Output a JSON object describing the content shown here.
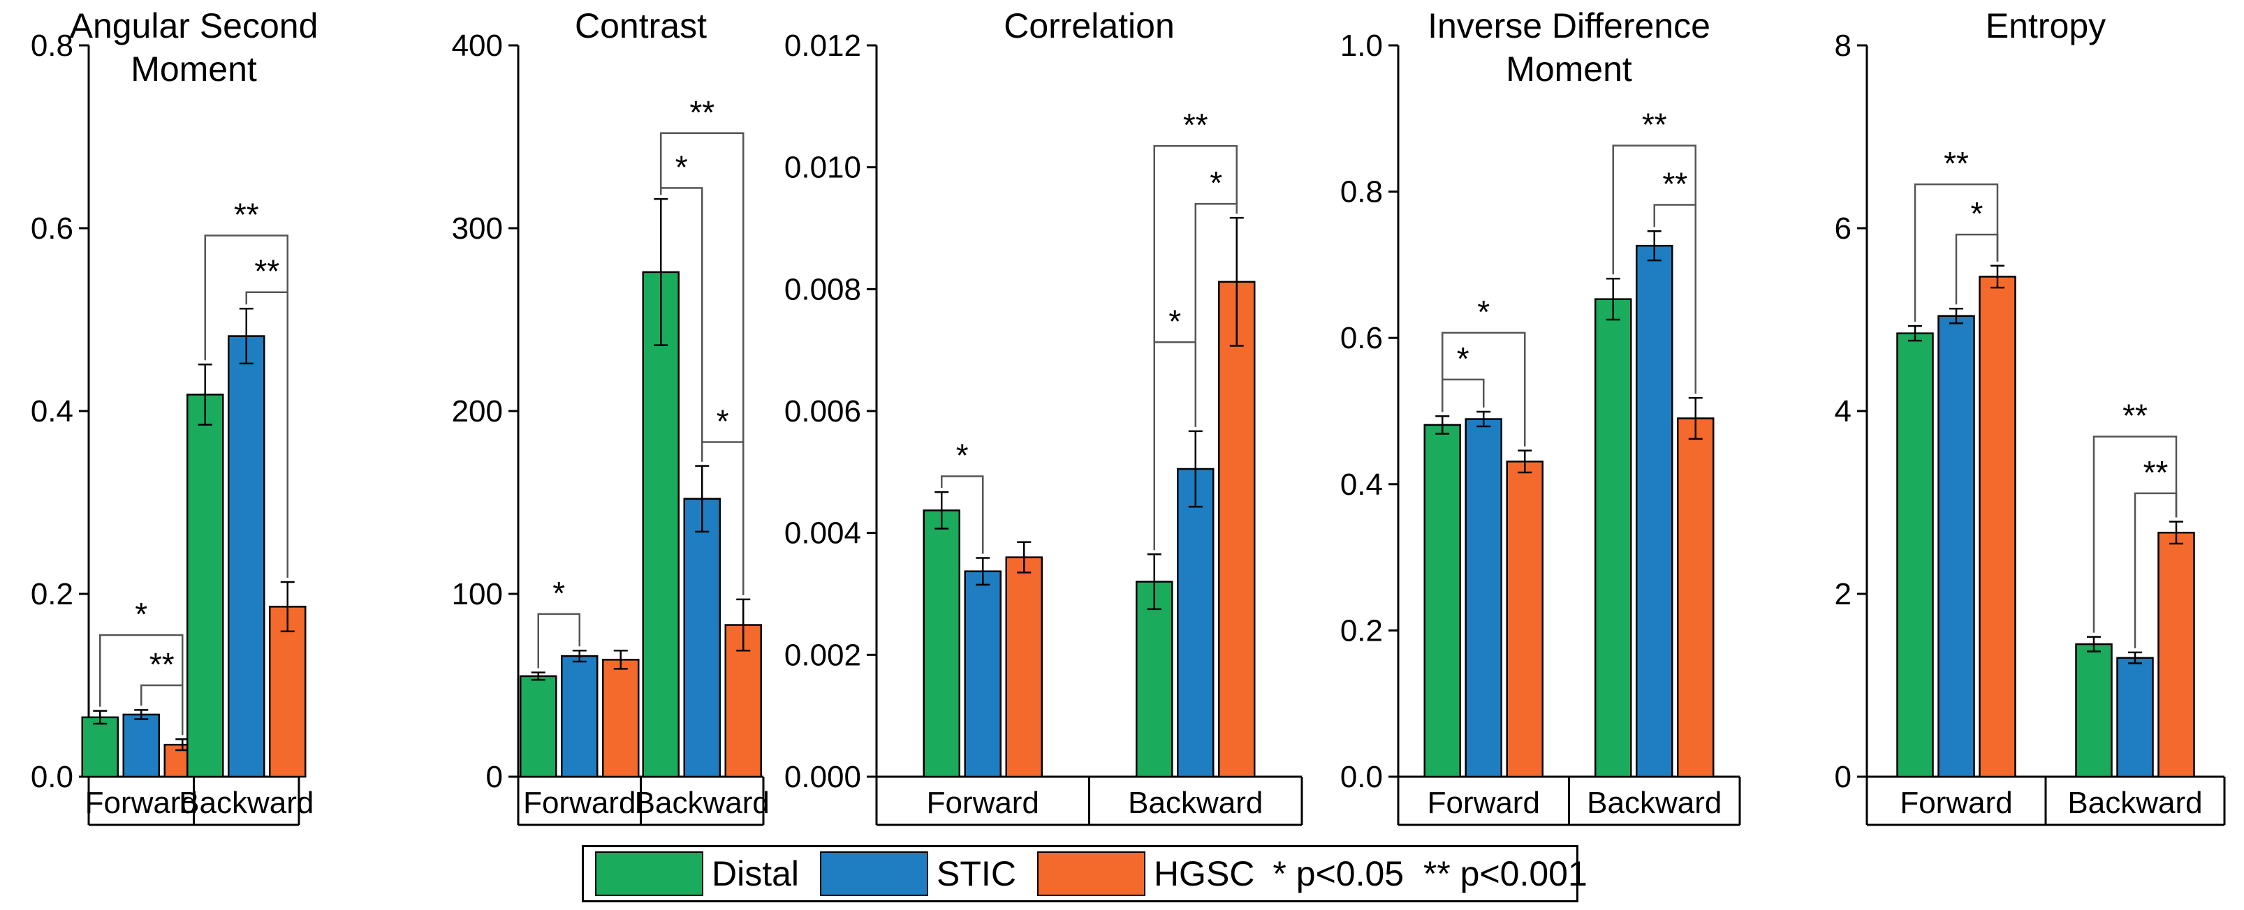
{
  "chart_data": [
    {
      "type": "bar",
      "title": "Angular Second Moment",
      "title_lines": [
        "Angular Second",
        "Moment"
      ],
      "categories": [
        "Forward",
        "Backward"
      ],
      "ylim": [
        0,
        0.8
      ],
      "yticks": [
        0.0,
        0.2,
        0.4,
        0.6,
        0.8
      ],
      "ytick_labels": [
        "0.0",
        "0.2",
        "0.4",
        "0.6",
        "0.8"
      ],
      "series": [
        {
          "name": "Distal",
          "values": [
            0.065,
            0.418
          ],
          "errors": [
            0.007,
            0.033
          ]
        },
        {
          "name": "STIC",
          "values": [
            0.068,
            0.482
          ],
          "errors": [
            0.005,
            0.03
          ]
        },
        {
          "name": "HGSC",
          "values": [
            0.035,
            0.186
          ],
          "errors": [
            0.006,
            0.027
          ]
        }
      ],
      "significance": [
        {
          "group": 0,
          "from": 0,
          "to": 2,
          "level": 0.155,
          "label": "*"
        },
        {
          "group": 0,
          "from": 1,
          "to": 2,
          "level": 0.1,
          "label": "**"
        },
        {
          "group": 1,
          "from": 0,
          "to": 2,
          "level": 0.592,
          "label": "**"
        },
        {
          "group": 1,
          "from": 1,
          "to": 2,
          "level": 0.53,
          "label": "**"
        }
      ]
    },
    {
      "type": "bar",
      "title": "Contrast",
      "title_lines": [
        "Contrast"
      ],
      "categories": [
        "Forward",
        "Backward"
      ],
      "ylim": [
        0,
        400
      ],
      "yticks": [
        0,
        100,
        200,
        300,
        400
      ],
      "ytick_labels": [
        "0",
        "100",
        "200",
        "300",
        "400"
      ],
      "series": [
        {
          "name": "Distal",
          "values": [
            55,
            276
          ],
          "errors": [
            2,
            40
          ]
        },
        {
          "name": "STIC",
          "values": [
            66,
            152
          ],
          "errors": [
            3,
            18
          ]
        },
        {
          "name": "HGSC",
          "values": [
            64,
            83
          ],
          "errors": [
            5,
            14
          ]
        }
      ],
      "significance": [
        {
          "group": 0,
          "from": 0,
          "to": 1,
          "level": 89,
          "label": "*"
        },
        {
          "group": 1,
          "from": 0,
          "to": 2,
          "level": 352,
          "label": "**"
        },
        {
          "group": 1,
          "from": 0,
          "to": 1,
          "level": 322,
          "label": "*"
        },
        {
          "group": 1,
          "from": 1,
          "to": 2,
          "level": 183,
          "label": "*"
        }
      ]
    },
    {
      "type": "bar",
      "title": "Correlation",
      "title_lines": [
        "Correlation"
      ],
      "categories": [
        "Forward",
        "Backward"
      ],
      "ylim": [
        0,
        0.012
      ],
      "yticks": [
        0,
        0.002,
        0.004,
        0.006,
        0.008,
        0.01,
        0.012
      ],
      "ytick_labels": [
        "0.000",
        "0.002",
        "0.004",
        "0.006",
        "0.008",
        "0.010",
        "0.012"
      ],
      "series": [
        {
          "name": "Distal",
          "values": [
            0.00437,
            0.0032
          ],
          "errors": [
            0.0003,
            0.00045
          ]
        },
        {
          "name": "STIC",
          "values": [
            0.00337,
            0.00505
          ],
          "errors": [
            0.00022,
            0.00062
          ]
        },
        {
          "name": "HGSC",
          "values": [
            0.0036,
            0.00812
          ],
          "errors": [
            0.00025,
            0.00105
          ]
        }
      ],
      "significance": [
        {
          "group": 0,
          "from": 0,
          "to": 1,
          "level": 0.00493,
          "label": "*"
        },
        {
          "group": 1,
          "from": 0,
          "to": 2,
          "level": 0.01035,
          "label": "**"
        },
        {
          "group": 1,
          "from": 1,
          "to": 2,
          "level": 0.0094,
          "label": "*"
        },
        {
          "group": 1,
          "from": 0,
          "to": 1,
          "level": 0.00713,
          "label": "*"
        }
      ]
    },
    {
      "type": "bar",
      "title": "Inverse Difference Moment",
      "title_lines": [
        "Inverse Difference",
        "Moment"
      ],
      "categories": [
        "Forward",
        "Backward"
      ],
      "ylim": [
        0,
        1.0
      ],
      "yticks": [
        0.0,
        0.2,
        0.4,
        0.6,
        0.8,
        1.0
      ],
      "ytick_labels": [
        "0.0",
        "0.2",
        "0.4",
        "0.6",
        "0.8",
        "1.0"
      ],
      "series": [
        {
          "name": "Distal",
          "values": [
            0.481,
            0.653
          ],
          "errors": [
            0.012,
            0.028
          ]
        },
        {
          "name": "STIC",
          "values": [
            0.489,
            0.726
          ],
          "errors": [
            0.01,
            0.02
          ]
        },
        {
          "name": "HGSC",
          "values": [
            0.431,
            0.49
          ],
          "errors": [
            0.015,
            0.028
          ]
        }
      ],
      "significance": [
        {
          "group": 0,
          "from": 0,
          "to": 2,
          "level": 0.607,
          "label": "*"
        },
        {
          "group": 0,
          "from": 0,
          "to": 1,
          "level": 0.543,
          "label": "*"
        },
        {
          "group": 1,
          "from": 0,
          "to": 2,
          "level": 0.863,
          "label": "**"
        },
        {
          "group": 1,
          "from": 1,
          "to": 2,
          "level": 0.782,
          "label": "**"
        }
      ]
    },
    {
      "type": "bar",
      "title": "Entropy",
      "title_lines": [
        "Entropy"
      ],
      "categories": [
        "Forward",
        "Backward"
      ],
      "ylim": [
        0,
        8
      ],
      "yticks": [
        0,
        2,
        4,
        6,
        8
      ],
      "ytick_labels": [
        "0",
        "2",
        "4",
        "6",
        "8"
      ],
      "series": [
        {
          "name": "Distal",
          "values": [
            4.85,
            1.45
          ],
          "errors": [
            0.08,
            0.08
          ]
        },
        {
          "name": "STIC",
          "values": [
            5.04,
            1.3
          ],
          "errors": [
            0.08,
            0.06
          ]
        },
        {
          "name": "HGSC",
          "values": [
            5.47,
            2.67
          ],
          "errors": [
            0.12,
            0.12
          ]
        }
      ],
      "significance": [
        {
          "group": 0,
          "from": 0,
          "to": 2,
          "level": 6.48,
          "label": "**"
        },
        {
          "group": 0,
          "from": 1,
          "to": 2,
          "level": 5.93,
          "label": "*"
        },
        {
          "group": 1,
          "from": 0,
          "to": 2,
          "level": 3.72,
          "label": "**"
        },
        {
          "group": 1,
          "from": 1,
          "to": 2,
          "level": 3.1,
          "label": "**"
        }
      ]
    }
  ],
  "legend": {
    "items": [
      {
        "label": "Distal",
        "color": "#1aab5c"
      },
      {
        "label": "STIC",
        "color": "#1f7ec2"
      },
      {
        "label": "HGSC",
        "color": "#f46a2c"
      }
    ],
    "note": "* p<0.05  ** p<0.001"
  }
}
